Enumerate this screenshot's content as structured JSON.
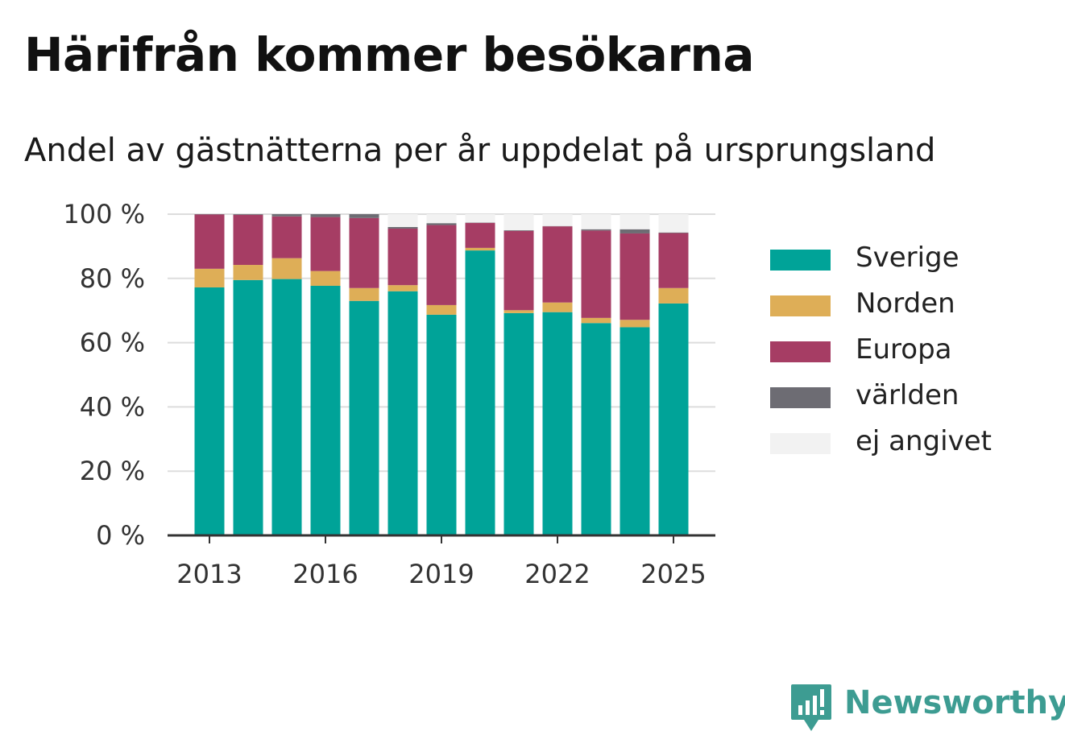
{
  "title": "Härifrån kommer besökarna",
  "subtitle": "Andel av gästnätterna per år uppdelat på ursprungsland",
  "brand": {
    "name": "Newsworthy",
    "icon": "newsworthy-logo-icon",
    "color": "#3d9c92"
  },
  "chart_data": {
    "type": "bar",
    "stacked": true,
    "categories": [
      "2013",
      "2014",
      "2015",
      "2016",
      "2017",
      "2018",
      "2019",
      "2020",
      "2021",
      "2022",
      "2023",
      "2024",
      "2025"
    ],
    "x_tick_labels": [
      "2013",
      "2016",
      "2019",
      "2022",
      "2025"
    ],
    "y_tick_labels": [
      "0 %",
      "20 %",
      "40 %",
      "60 %",
      "80 %",
      "100 %"
    ],
    "ylim": [
      0,
      100
    ],
    "grid": true,
    "legend_position": "right",
    "series": [
      {
        "name": "Sverige",
        "color": "#00a398",
        "values": [
          77.2,
          79.5,
          79.8,
          77.7,
          73.0,
          76.0,
          68.7,
          88.7,
          69.2,
          69.5,
          66.1,
          64.8,
          72.2
        ]
      },
      {
        "name": "Norden",
        "color": "#deae57",
        "values": [
          5.8,
          4.7,
          6.5,
          4.6,
          4.0,
          1.9,
          3.0,
          0.8,
          0.9,
          3.0,
          1.6,
          2.3,
          4.8
        ]
      },
      {
        "name": "Europa",
        "color": "#a63d64",
        "values": [
          16.9,
          15.6,
          13.0,
          16.8,
          21.8,
          17.6,
          24.9,
          7.8,
          24.7,
          23.7,
          27.2,
          26.9,
          17.1
        ]
      },
      {
        "name": "världen",
        "color": "#6d6c73",
        "values": [
          0.1,
          0.2,
          0.7,
          0.9,
          1.2,
          0.5,
          0.6,
          0.1,
          0.2,
          0.1,
          0.4,
          1.3,
          0.2
        ]
      },
      {
        "name": "ej angivet",
        "color": "#f2f2f2",
        "values": [
          0.0,
          0.0,
          0.0,
          0.0,
          0.0,
          4.0,
          2.8,
          2.6,
          5.0,
          3.7,
          4.7,
          4.7,
          5.7
        ]
      }
    ]
  }
}
